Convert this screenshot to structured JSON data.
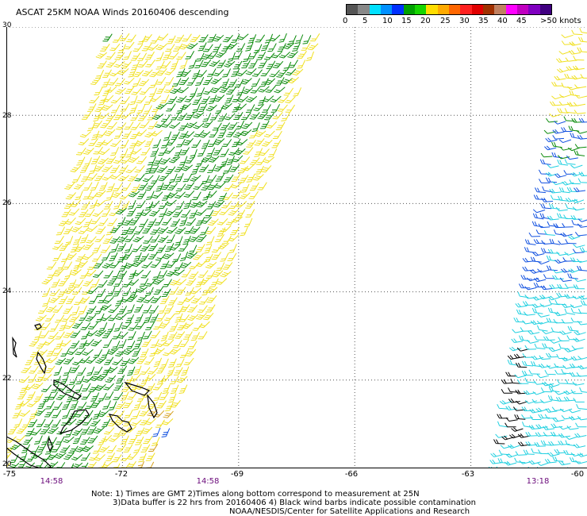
{
  "title": "ASCAT 25KM NOAA Winds 20160406 descending",
  "speed_scale": {
    "colors": [
      "#555555",
      "#888888",
      "#00e0ff",
      "#0090ff",
      "#0030ff",
      "#00a000",
      "#16d500",
      "#ffdd00",
      "#ffaa00",
      "#ff6600",
      "#ff2020",
      "#e00000",
      "#a03000",
      "#c08060",
      "#ff00ff",
      "#c000c0",
      "#8000c0",
      "#400080"
    ],
    "ticks": [
      "0",
      "5",
      "10",
      "15",
      "20",
      "25",
      "30",
      "35",
      "40",
      "45",
      ">50 knots"
    ]
  },
  "latitude_labels": [
    "30",
    "28",
    "26",
    "24",
    "22",
    "20"
  ],
  "longitude_labels": [
    "-75",
    "-72",
    "-69",
    "-66",
    "-63",
    "-60"
  ],
  "pass_times": [
    "14:58",
    "14:58",
    "13:18"
  ],
  "notes": [
    "Note: 1) Times are GMT 2)Times along bottom correspond to measurement at 25N",
    "3)Data buffer is 22 hrs from 20160406 4) Black wind barbs indicate possible contamination",
    "NOAA/NESDIS/Center for Satellite Applications and Research"
  ],
  "map": {
    "lat_range": [
      20,
      30
    ],
    "lon_range": [
      -75,
      -60
    ],
    "grid": "dotted",
    "barb_colors": {
      "green": "#0a8a0a",
      "yellow": "#f0e020",
      "orange": "#d4a020",
      "cyan": "#20d0e0",
      "blue": "#1050e0",
      "black": "#000000"
    }
  }
}
